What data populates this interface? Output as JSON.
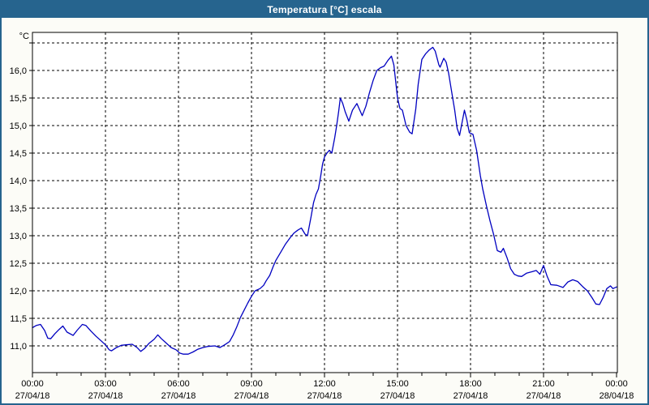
{
  "window": {
    "title": "Temperatura [°C] escala"
  },
  "colors": {
    "titlebar_bg": "#26648E",
    "window_border": "#26648E",
    "title_text": "#FFFFFF",
    "content_bg": "#FCFCF7",
    "plot_bg": "#FFFFFF",
    "grid": "#000000",
    "axis": "#000000",
    "label_text": "#000000",
    "line": "#0000C0"
  },
  "chart_data": {
    "type": "line",
    "title": "Temperatura [°C] escala",
    "ylabel": "°C",
    "grid": "dashed",
    "legend": "none",
    "x_axis": {
      "xlim_hours": [
        0,
        24.033
      ],
      "minor_tick_every_hours": 1,
      "gridline_hours": [
        3,
        6,
        9,
        12,
        15,
        18,
        21
      ],
      "tick_labels": [
        {
          "h": 0,
          "time": "00:00",
          "date": "27/04/18"
        },
        {
          "h": 3,
          "time": "03:00",
          "date": "27/04/18"
        },
        {
          "h": 6,
          "time": "06:00",
          "date": "27/04/18"
        },
        {
          "h": 9,
          "time": "09:00",
          "date": "27/04/18"
        },
        {
          "h": 12,
          "time": "12:00",
          "date": "27/04/18"
        },
        {
          "h": 15,
          "time": "15:00",
          "date": "27/04/18"
        },
        {
          "h": 18,
          "time": "18:00",
          "date": "27/04/18"
        },
        {
          "h": 21,
          "time": "21:00",
          "date": "27/04/18"
        },
        {
          "h": 24,
          "time": "00:00",
          "date": "28/04/18"
        }
      ]
    },
    "y_axis": {
      "ylim": [
        10.515,
        16.691
      ],
      "unit_label": "°C",
      "ticks": [
        {
          "v": 16.5,
          "label": ""
        },
        {
          "v": 16.0,
          "label": "16,0"
        },
        {
          "v": 15.5,
          "label": "15,5"
        },
        {
          "v": 15.0,
          "label": "15,0"
        },
        {
          "v": 14.5,
          "label": "14,5"
        },
        {
          "v": 14.0,
          "label": "14,0"
        },
        {
          "v": 13.5,
          "label": "13,5"
        },
        {
          "v": 13.0,
          "label": "13,0"
        },
        {
          "v": 12.5,
          "label": "12,5"
        },
        {
          "v": 12.0,
          "label": "12,0"
        },
        {
          "v": 11.5,
          "label": "11,5"
        },
        {
          "v": 11.0,
          "label": "11,0"
        }
      ]
    },
    "series": [
      {
        "name": "Temperatura [°C]",
        "color": "#0000C0",
        "points": [
          [
            0.0,
            11.33
          ],
          [
            0.15,
            11.37
          ],
          [
            0.33,
            11.39
          ],
          [
            0.5,
            11.28
          ],
          [
            0.63,
            11.14
          ],
          [
            0.75,
            11.13
          ],
          [
            0.92,
            11.22
          ],
          [
            1.1,
            11.3
          ],
          [
            1.25,
            11.36
          ],
          [
            1.42,
            11.25
          ],
          [
            1.67,
            11.19
          ],
          [
            1.83,
            11.28
          ],
          [
            2.05,
            11.39
          ],
          [
            2.2,
            11.37
          ],
          [
            2.4,
            11.27
          ],
          [
            2.6,
            11.18
          ],
          [
            2.8,
            11.1
          ],
          [
            3.0,
            11.02
          ],
          [
            3.15,
            10.93
          ],
          [
            3.25,
            10.91
          ],
          [
            3.45,
            10.97
          ],
          [
            3.65,
            11.01
          ],
          [
            3.85,
            11.02
          ],
          [
            4.1,
            11.03
          ],
          [
            4.3,
            10.97
          ],
          [
            4.45,
            10.9
          ],
          [
            4.6,
            10.95
          ],
          [
            4.8,
            11.05
          ],
          [
            5.0,
            11.12
          ],
          [
            5.15,
            11.2
          ],
          [
            5.3,
            11.13
          ],
          [
            5.5,
            11.05
          ],
          [
            5.7,
            10.97
          ],
          [
            5.9,
            10.93
          ],
          [
            6.05,
            10.87
          ],
          [
            6.2,
            10.85
          ],
          [
            6.4,
            10.85
          ],
          [
            6.6,
            10.89
          ],
          [
            6.8,
            10.94
          ],
          [
            7.0,
            10.97
          ],
          [
            7.2,
            10.99
          ],
          [
            7.5,
            11.0
          ],
          [
            7.7,
            10.97
          ],
          [
            7.9,
            11.02
          ],
          [
            8.1,
            11.08
          ],
          [
            8.25,
            11.2
          ],
          [
            8.4,
            11.35
          ],
          [
            8.55,
            11.52
          ],
          [
            8.7,
            11.65
          ],
          [
            8.85,
            11.78
          ],
          [
            9.0,
            11.9
          ],
          [
            9.15,
            12.0
          ],
          [
            9.35,
            12.04
          ],
          [
            9.5,
            12.1
          ],
          [
            9.6,
            12.18
          ],
          [
            9.75,
            12.28
          ],
          [
            9.9,
            12.45
          ],
          [
            10.0,
            12.55
          ],
          [
            10.2,
            12.7
          ],
          [
            10.4,
            12.85
          ],
          [
            10.6,
            12.97
          ],
          [
            10.75,
            13.05
          ],
          [
            10.9,
            13.1
          ],
          [
            11.05,
            13.14
          ],
          [
            11.2,
            13.03
          ],
          [
            11.3,
            13.0
          ],
          [
            11.45,
            13.35
          ],
          [
            11.55,
            13.6
          ],
          [
            11.65,
            13.75
          ],
          [
            11.75,
            13.85
          ],
          [
            11.85,
            14.1
          ],
          [
            11.92,
            14.3
          ],
          [
            12.0,
            14.43
          ],
          [
            12.1,
            14.5
          ],
          [
            12.2,
            14.55
          ],
          [
            12.3,
            14.5
          ],
          [
            12.42,
            14.78
          ],
          [
            12.5,
            15.0
          ],
          [
            12.58,
            15.25
          ],
          [
            12.65,
            15.5
          ],
          [
            12.75,
            15.4
          ],
          [
            12.85,
            15.25
          ],
          [
            13.0,
            15.08
          ],
          [
            13.15,
            15.28
          ],
          [
            13.33,
            15.4
          ],
          [
            13.45,
            15.28
          ],
          [
            13.55,
            15.18
          ],
          [
            13.7,
            15.35
          ],
          [
            13.85,
            15.6
          ],
          [
            14.0,
            15.82
          ],
          [
            14.15,
            16.0
          ],
          [
            14.3,
            16.05
          ],
          [
            14.45,
            16.08
          ],
          [
            14.6,
            16.18
          ],
          [
            14.75,
            16.26
          ],
          [
            14.85,
            16.1
          ],
          [
            15.0,
            15.5
          ],
          [
            15.1,
            15.31
          ],
          [
            15.2,
            15.28
          ],
          [
            15.35,
            15.0
          ],
          [
            15.5,
            14.88
          ],
          [
            15.6,
            14.85
          ],
          [
            15.75,
            15.3
          ],
          [
            15.85,
            15.75
          ],
          [
            16.0,
            16.2
          ],
          [
            16.15,
            16.3
          ],
          [
            16.3,
            16.37
          ],
          [
            16.45,
            16.42
          ],
          [
            16.55,
            16.35
          ],
          [
            16.7,
            16.1
          ],
          [
            16.75,
            16.06
          ],
          [
            16.9,
            16.22
          ],
          [
            17.0,
            16.15
          ],
          [
            17.1,
            15.95
          ],
          [
            17.2,
            15.68
          ],
          [
            17.35,
            15.28
          ],
          [
            17.45,
            14.95
          ],
          [
            17.55,
            14.82
          ],
          [
            17.65,
            15.05
          ],
          [
            17.75,
            15.28
          ],
          [
            17.85,
            15.1
          ],
          [
            17.95,
            14.87
          ],
          [
            18.1,
            14.84
          ],
          [
            18.25,
            14.55
          ],
          [
            18.4,
            14.1
          ],
          [
            18.5,
            13.85
          ],
          [
            18.65,
            13.55
          ],
          [
            18.8,
            13.27
          ],
          [
            18.95,
            13.02
          ],
          [
            19.1,
            12.73
          ],
          [
            19.25,
            12.7
          ],
          [
            19.35,
            12.77
          ],
          [
            19.5,
            12.6
          ],
          [
            19.65,
            12.4
          ],
          [
            19.8,
            12.3
          ],
          [
            19.95,
            12.27
          ],
          [
            20.1,
            12.26
          ],
          [
            20.3,
            12.32
          ],
          [
            20.55,
            12.35
          ],
          [
            20.7,
            12.37
          ],
          [
            20.85,
            12.3
          ],
          [
            21.0,
            12.46
          ],
          [
            21.15,
            12.26
          ],
          [
            21.3,
            12.11
          ],
          [
            21.55,
            12.1
          ],
          [
            21.8,
            12.06
          ],
          [
            22.0,
            12.16
          ],
          [
            22.2,
            12.2
          ],
          [
            22.4,
            12.17
          ],
          [
            22.6,
            12.08
          ],
          [
            22.8,
            12.0
          ],
          [
            23.0,
            11.87
          ],
          [
            23.15,
            11.76
          ],
          [
            23.3,
            11.75
          ],
          [
            23.45,
            11.88
          ],
          [
            23.6,
            12.04
          ],
          [
            23.75,
            12.09
          ],
          [
            23.85,
            12.04
          ],
          [
            24.0,
            12.07
          ]
        ]
      }
    ]
  }
}
